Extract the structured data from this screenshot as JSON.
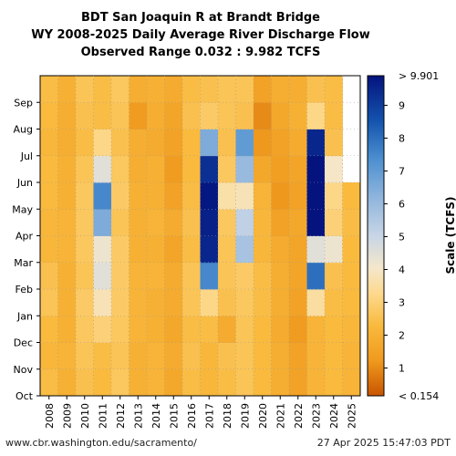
{
  "chart_data": {
    "type": "heatmap",
    "title": "BDT San Joaquin R at Brandt Bridge",
    "subtitle": "WY 2008-2025 Daily Average River Discharge Flow",
    "range_text": "Observed Range 0.032 : 9.982 TCFS",
    "x_categories": [
      "2008",
      "2009",
      "2010",
      "2011",
      "2012",
      "2013",
      "2014",
      "2015",
      "2016",
      "2017",
      "2018",
      "2019",
      "2020",
      "2021",
      "2022",
      "2023",
      "2024",
      "2025"
    ],
    "y_categories": [
      "Oct",
      "Nov",
      "Dec",
      "Jan",
      "Feb",
      "Mar",
      "Apr",
      "May",
      "Jun",
      "Jul",
      "Aug",
      "Sep"
    ],
    "colorbar": {
      "label": "Scale (TCFS)",
      "top_label": "> 9.901",
      "bottom_label": "< 0.154",
      "ticks": [
        "1",
        "2",
        "3",
        "4",
        "5",
        "6",
        "7",
        "8",
        "9"
      ],
      "min": 0.154,
      "max": 9.901
    },
    "monthly_values": [
      [
        2.4,
        2.2,
        2.3,
        2.6,
        2.5,
        2.2,
        2.2,
        2.3,
        2.3,
        2.2,
        2.3,
        2.4
      ],
      [
        2.0,
        2.1,
        2.0,
        2.0,
        2.0,
        2.1,
        2.1,
        2.0,
        2.0,
        1.9,
        1.9,
        2.0
      ],
      [
        2.5,
        2.6,
        2.7,
        2.8,
        2.6,
        2.7,
        2.7,
        2.7,
        2.6,
        2.4,
        2.5,
        2.6
      ],
      [
        2.3,
        2.4,
        3.0,
        3.8,
        4.5,
        4.2,
        6.5,
        7.5,
        4.5,
        3.2,
        2.4,
        2.4
      ],
      [
        2.7,
        2.6,
        2.7,
        2.8,
        2.8,
        2.8,
        2.6,
        2.8,
        2.7,
        2.5,
        2.6,
        2.7
      ],
      [
        2.0,
        2.0,
        2.1,
        2.1,
        2.1,
        2.0,
        2.0,
        2.0,
        1.9,
        1.9,
        1.3,
        1.9
      ],
      [
        2.1,
        2.1,
        2.0,
        2.0,
        2.1,
        2.0,
        2.1,
        2.0,
        2.0,
        1.8,
        1.9,
        2.0
      ],
      [
        1.7,
        1.8,
        1.7,
        1.8,
        1.8,
        1.6,
        1.8,
        1.5,
        1.3,
        1.5,
        1.6,
        1.8
      ],
      [
        2.4,
        2.5,
        2.4,
        2.6,
        2.6,
        2.4,
        2.5,
        2.4,
        2.3,
        2.3,
        2.5,
        2.4
      ],
      [
        2.2,
        2.2,
        2.4,
        3.2,
        7.5,
        9.5,
        9.6,
        9.8,
        9.3,
        6.5,
        2.8,
        2.5
      ],
      [
        2.4,
        2.5,
        1.8,
        2.5,
        2.6,
        2.6,
        2.7,
        3.6,
        2.7,
        2.5,
        2.6,
        2.6
      ],
      [
        2.6,
        2.6,
        2.6,
        2.7,
        2.8,
        5.7,
        5.2,
        3.8,
        6.0,
        7.0,
        2.5,
        2.6
      ],
      [
        2.3,
        2.3,
        2.3,
        2.4,
        2.4,
        2.2,
        2.2,
        2.1,
        1.7,
        1.2,
        1.0,
        1.5
      ],
      [
        1.9,
        1.9,
        1.8,
        1.9,
        1.9,
        1.8,
        1.5,
        1.2,
        1.4,
        1.5,
        1.7,
        1.9
      ],
      [
        1.5,
        1.5,
        1.3,
        1.5,
        1.6,
        1.6,
        1.7,
        1.5,
        1.6,
        1.8,
        2.0,
        1.9
      ],
      [
        2.1,
        2.1,
        2.1,
        3.5,
        8.0,
        4.5,
        9.9,
        9.9,
        9.9,
        9.5,
        3.2,
        2.5
      ],
      [
        2.3,
        2.3,
        2.3,
        2.4,
        2.5,
        4.2,
        3.0,
        3.2,
        4.0,
        2.5,
        2.4,
        2.4
      ],
      [
        2.1,
        2.1,
        2.2,
        2.3,
        2.3,
        2.3,
        2.4,
        2.3,
        null,
        null,
        null,
        null
      ]
    ]
  },
  "footer": {
    "left": "www.cbr.washington.edu/sacramento/",
    "right": "27 Apr 2025 15:47:03 PDT"
  }
}
